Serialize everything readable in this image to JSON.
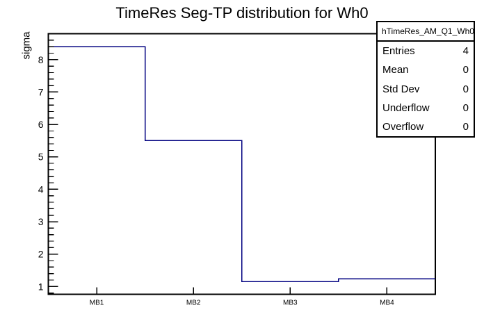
{
  "title": "TimeRes Seg-TP distribution for Wh0",
  "chart_data": {
    "type": "bar",
    "subtype": "step-histogram-outline",
    "title": "TimeRes Seg-TP distribution for Wh0",
    "categories": [
      "MB1",
      "MB2",
      "MB3",
      "MB4"
    ],
    "values": [
      8.4,
      5.5,
      1.15,
      1.24
    ],
    "xlabel": "",
    "ylabel": "sigma",
    "ylim": [
      0.76,
      8.8
    ],
    "yticks": [
      1,
      2,
      3,
      4,
      5,
      6,
      7,
      8
    ],
    "minor_tick_step": 0.2,
    "grid": false,
    "legend_position": "none",
    "line_color": "#000080",
    "frame_color": "#000000"
  },
  "stats_box": {
    "header": "hTimeRes_AM_Q1_Wh0",
    "rows": [
      {
        "label": "Entries",
        "value": "4"
      },
      {
        "label": "Mean",
        "value": "0"
      },
      {
        "label": "Std Dev",
        "value": "0"
      },
      {
        "label": "Underflow",
        "value": "0"
      },
      {
        "label": "Overflow",
        "value": "0"
      }
    ]
  },
  "colors": {
    "background": "#ffffff",
    "text": "#000000",
    "histogram_line": "#000080",
    "frame": "#000000"
  }
}
